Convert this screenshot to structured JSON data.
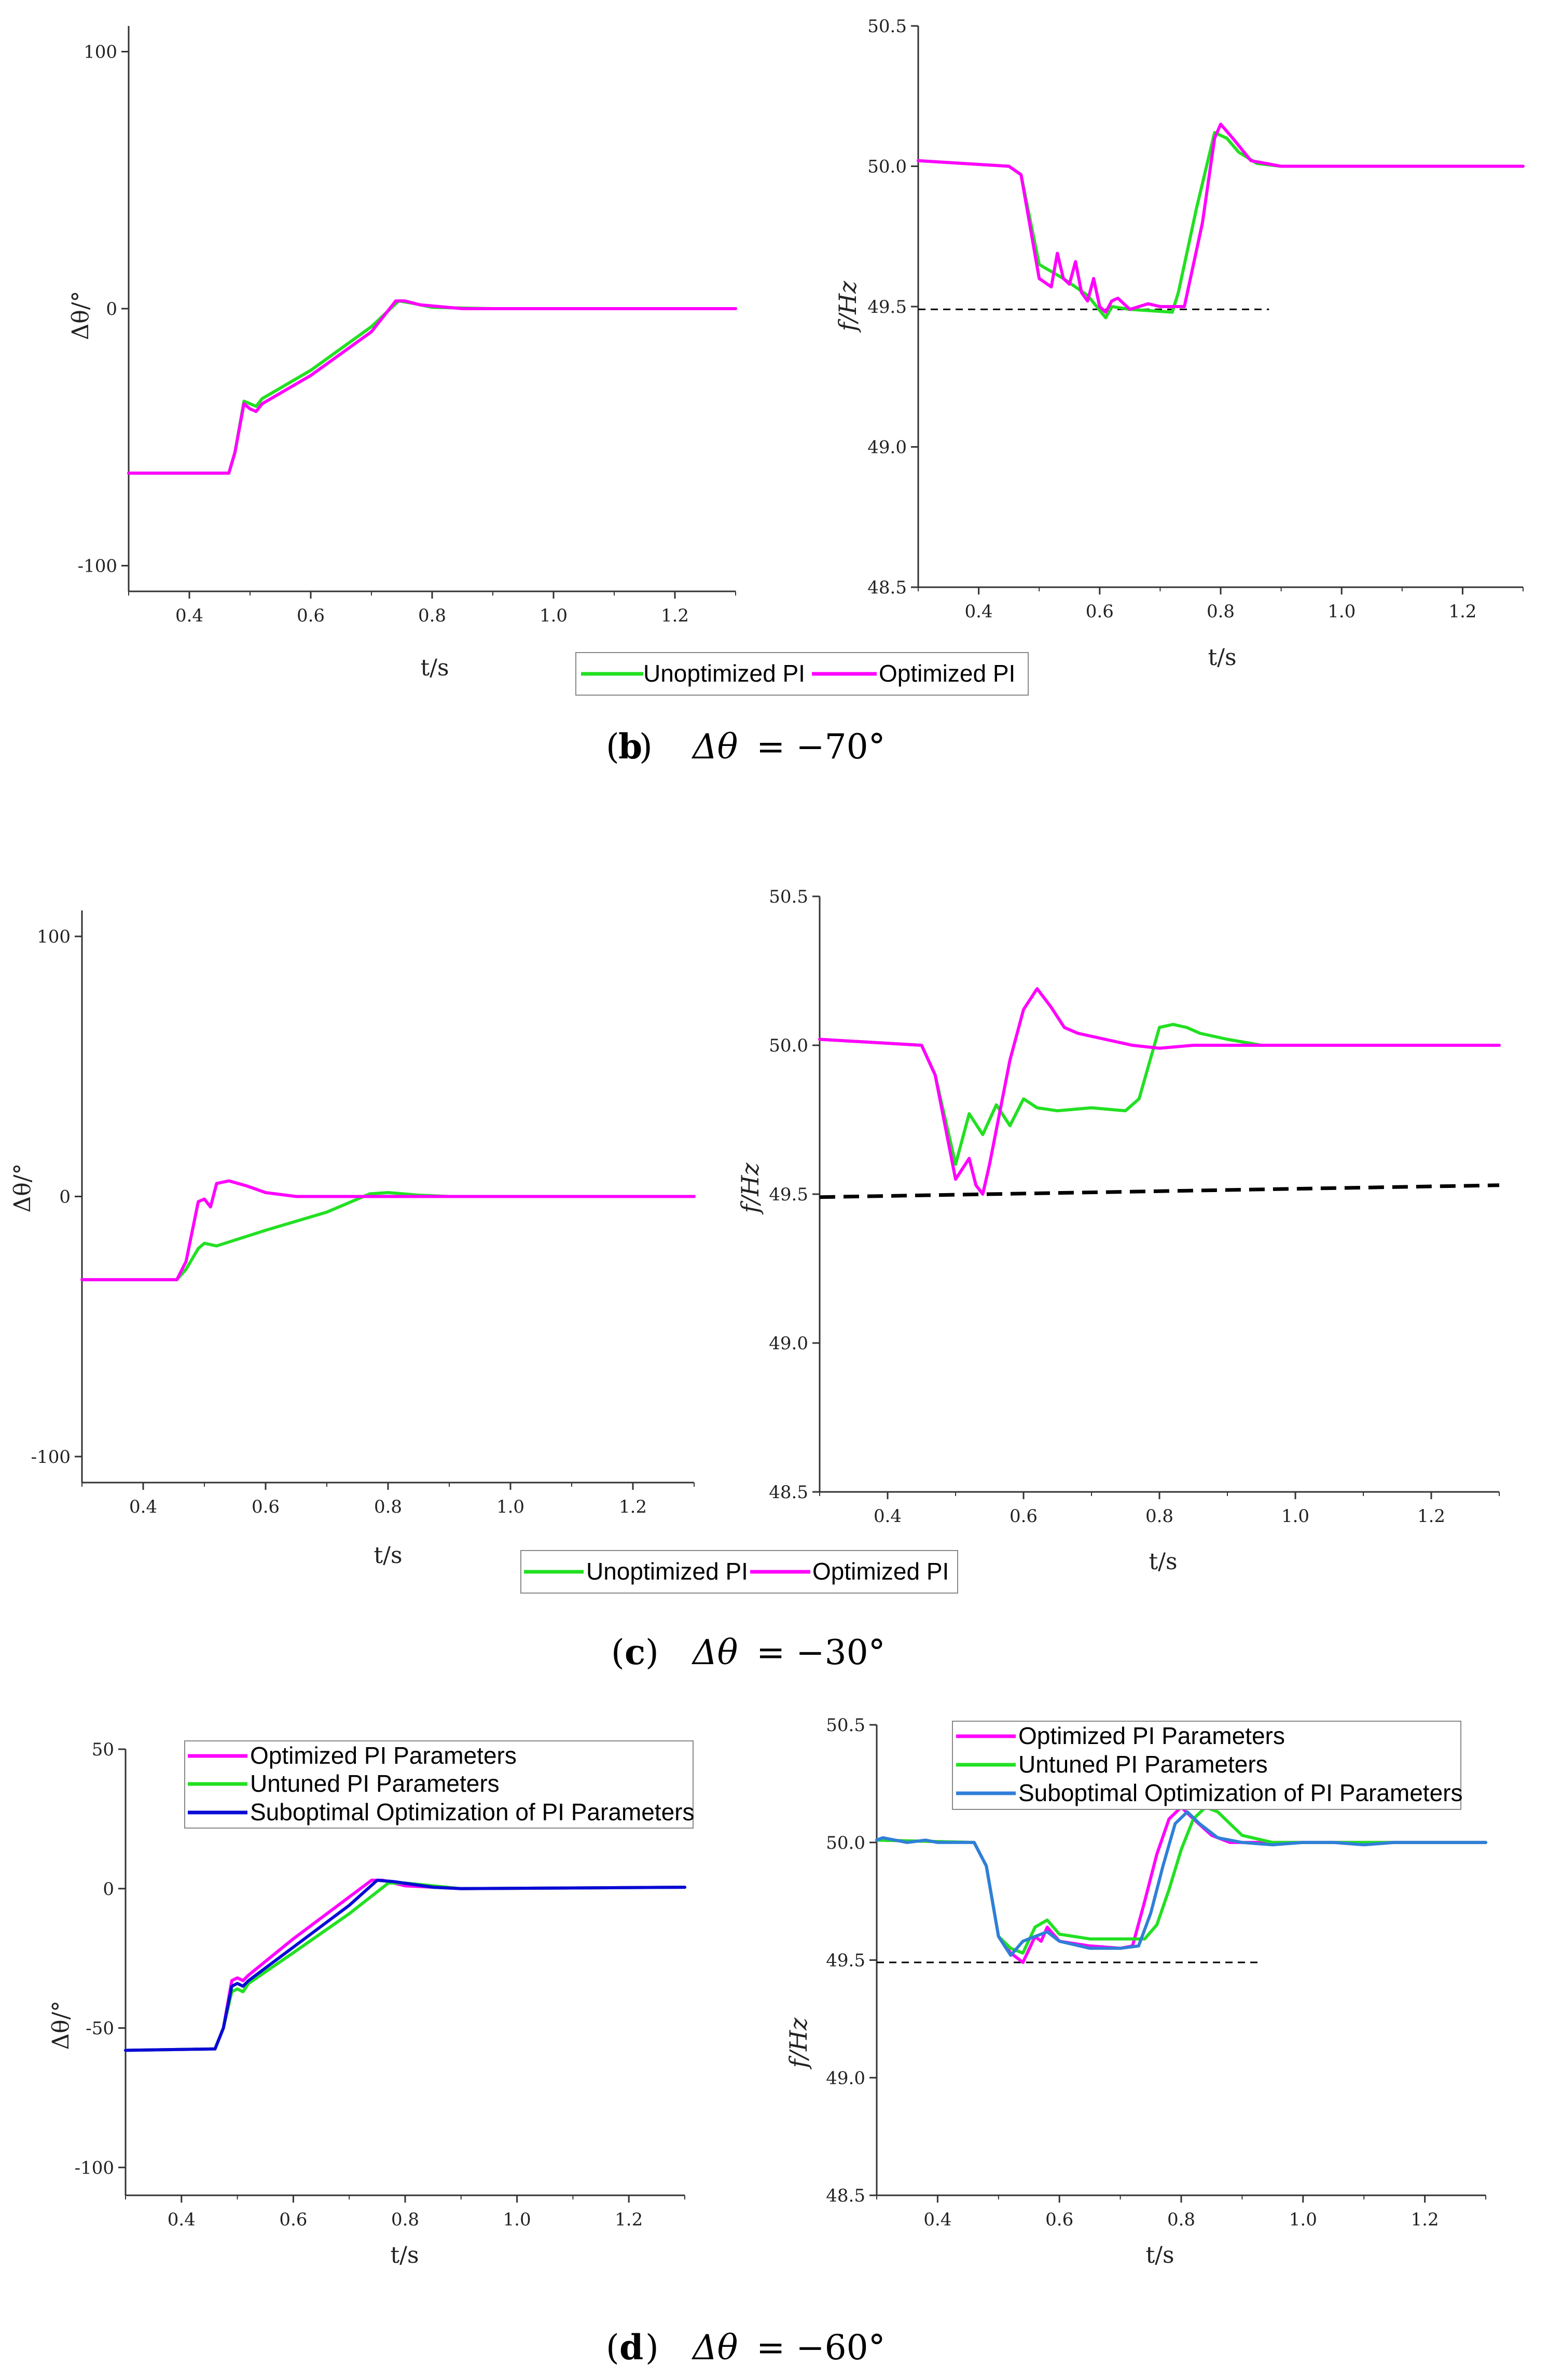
{
  "colors": {
    "optimized": "#ff00ff",
    "unoptimized": "#22e022",
    "suboptimal_left": "#0a0ad6",
    "suboptimal_right": "#2f7fd8",
    "reference": "#000000"
  },
  "captions": {
    "b": {
      "label": "b",
      "symbol": "Δθ",
      "value": "= −70°"
    },
    "c": {
      "label": "c",
      "symbol": "Δθ",
      "value": "= −30°"
    },
    "d": {
      "label": "d",
      "symbol": "Δθ",
      "value": "= −60°"
    }
  },
  "legends": {
    "bc": {
      "series_unopt": "Unoptimized PI",
      "series_opt": "Optimized PI"
    },
    "d": {
      "series_opt": "Optimized PI Parameters",
      "series_untuned": "Untuned PI Parameters",
      "series_subopt": "Suboptimal Optimization of PI Parameters"
    }
  },
  "chart_data": [
    {
      "id": "b-left",
      "type": "line",
      "xlabel": "t/s",
      "ylabel": "Δθ/°",
      "xlim": [
        0.3,
        1.3
      ],
      "ylim": [
        -110,
        110
      ],
      "xticks": [
        "0.4",
        "0.6",
        "0.8",
        "1.0",
        "1.2"
      ],
      "yticks": [
        "-100",
        "0",
        "100"
      ],
      "series": [
        {
          "name": "Unoptimized PI",
          "x": [
            0.3,
            0.465,
            0.475,
            0.49,
            0.5,
            0.51,
            0.52,
            0.6,
            0.7,
            0.745,
            0.77,
            0.8,
            0.9,
            1.3
          ],
          "y": [
            -64,
            -64,
            -56,
            -36,
            -37,
            -38,
            -35,
            -24,
            -7,
            3,
            2,
            0.5,
            0,
            0
          ]
        },
        {
          "name": "Optimized PI",
          "x": [
            0.3,
            0.465,
            0.475,
            0.49,
            0.5,
            0.51,
            0.52,
            0.6,
            0.7,
            0.74,
            0.755,
            0.78,
            0.85,
            1.3
          ],
          "y": [
            -64,
            -64,
            -56,
            -37,
            -39,
            -40,
            -37,
            -26,
            -9,
            3,
            3,
            1.5,
            0,
            0
          ]
        }
      ]
    },
    {
      "id": "b-right",
      "type": "line",
      "xlabel": "t/s",
      "ylabel": "f/Hz",
      "xlim": [
        0.3,
        1.3
      ],
      "ylim": [
        48.5,
        50.5
      ],
      "xticks": [
        "0.4",
        "0.6",
        "0.8",
        "1.0",
        "1.2"
      ],
      "yticks": [
        "48.5",
        "49.0",
        "49.5",
        "50.0",
        "50.5"
      ],
      "reference": {
        "y": [
          49.49,
          49.49
        ],
        "x": [
          0.3,
          0.88
        ]
      },
      "series": [
        {
          "name": "Unoptimized PI",
          "x": [
            0.3,
            0.45,
            0.47,
            0.5,
            0.54,
            0.58,
            0.61,
            0.62,
            0.65,
            0.72,
            0.73,
            0.76,
            0.79,
            0.81,
            0.83,
            0.86,
            0.9,
            1.3
          ],
          "y": [
            50.02,
            50.0,
            49.97,
            49.65,
            49.6,
            49.54,
            49.46,
            49.5,
            49.49,
            49.48,
            49.55,
            49.85,
            50.12,
            50.1,
            50.05,
            50.01,
            50.0,
            50.0
          ]
        },
        {
          "name": "Optimized PI",
          "x": [
            0.3,
            0.45,
            0.47,
            0.5,
            0.52,
            0.53,
            0.54,
            0.55,
            0.56,
            0.57,
            0.58,
            0.59,
            0.6,
            0.61,
            0.62,
            0.63,
            0.65,
            0.68,
            0.7,
            0.72,
            0.74,
            0.77,
            0.79,
            0.8,
            0.82,
            0.85,
            0.9,
            0.95,
            1.0,
            1.05,
            1.1,
            1.3
          ],
          "y": [
            50.02,
            50.0,
            49.97,
            49.6,
            49.57,
            49.69,
            49.6,
            49.58,
            49.66,
            49.55,
            49.52,
            49.6,
            49.5,
            49.48,
            49.52,
            49.53,
            49.49,
            49.51,
            49.5,
            49.5,
            49.5,
            49.8,
            50.1,
            50.15,
            50.1,
            50.02,
            50.0,
            50.0,
            50.0,
            50.0,
            50.0,
            50.0
          ]
        }
      ]
    },
    {
      "id": "c-left",
      "type": "line",
      "xlabel": "t/s",
      "ylabel": "Δθ/°",
      "xlim": [
        0.3,
        1.3
      ],
      "ylim": [
        -110,
        110
      ],
      "xticks": [
        "0.4",
        "0.6",
        "0.8",
        "1.0",
        "1.2"
      ],
      "yticks": [
        "-100",
        "0",
        "100"
      ],
      "series": [
        {
          "name": "Unoptimized PI",
          "x": [
            0.3,
            0.455,
            0.47,
            0.49,
            0.5,
            0.52,
            0.6,
            0.7,
            0.77,
            0.8,
            0.85,
            0.9,
            1.3
          ],
          "y": [
            -32,
            -32,
            -28,
            -20,
            -18,
            -19,
            -13,
            -6,
            1,
            1.5,
            0.5,
            0,
            0
          ]
        },
        {
          "name": "Optimized PI",
          "x": [
            0.3,
            0.455,
            0.47,
            0.49,
            0.5,
            0.51,
            0.52,
            0.54,
            0.57,
            0.6,
            0.65,
            0.7,
            0.8,
            1.3
          ],
          "y": [
            -32,
            -32,
            -25,
            -2,
            -1,
            -4,
            5,
            6,
            4,
            1.5,
            0,
            0,
            0,
            0
          ]
        }
      ]
    },
    {
      "id": "c-right",
      "type": "line",
      "xlabel": "t/s",
      "ylabel": "f/Hz",
      "xlim": [
        0.3,
        1.3
      ],
      "ylim": [
        48.5,
        50.5
      ],
      "xticks": [
        "0.4",
        "0.6",
        "0.8",
        "1.0",
        "1.2"
      ],
      "yticks": [
        "48.5",
        "49.0",
        "49.5",
        "50.0",
        "50.5"
      ],
      "reference": {
        "y": [
          49.49,
          49.53
        ],
        "x": [
          0.3,
          1.3
        ]
      },
      "series": [
        {
          "name": "Unoptimized PI",
          "x": [
            0.3,
            0.45,
            0.47,
            0.5,
            0.52,
            0.54,
            0.56,
            0.58,
            0.6,
            0.62,
            0.65,
            0.7,
            0.75,
            0.77,
            0.79,
            0.8,
            0.82,
            0.84,
            0.86,
            0.9,
            0.95,
            1.3
          ],
          "y": [
            50.02,
            50.0,
            49.9,
            49.6,
            49.77,
            49.7,
            49.8,
            49.73,
            49.82,
            49.79,
            49.78,
            49.79,
            49.78,
            49.82,
            49.98,
            50.06,
            50.07,
            50.06,
            50.04,
            50.02,
            50.0,
            50.0
          ]
        },
        {
          "name": "Optimized PI",
          "x": [
            0.3,
            0.45,
            0.47,
            0.5,
            0.52,
            0.53,
            0.54,
            0.55,
            0.58,
            0.6,
            0.62,
            0.64,
            0.66,
            0.68,
            0.72,
            0.76,
            0.8,
            0.85,
            0.9,
            0.95,
            1.0,
            1.05,
            1.3
          ],
          "y": [
            50.02,
            50.0,
            49.9,
            49.55,
            49.62,
            49.53,
            49.5,
            49.6,
            49.95,
            50.12,
            50.19,
            50.13,
            50.06,
            50.04,
            50.02,
            50.0,
            49.99,
            50.0,
            50.0,
            50.0,
            50.0,
            50.0,
            50.0
          ]
        }
      ]
    },
    {
      "id": "d-left",
      "type": "line",
      "xlabel": "t/s",
      "ylabel": "Δθ/°",
      "xlim": [
        0.3,
        1.3
      ],
      "ylim": [
        -110,
        50
      ],
      "xticks": [
        "0.4",
        "0.6",
        "0.8",
        "1.0",
        "1.2"
      ],
      "yticks": [
        "-100",
        "-50",
        "0",
        "50"
      ],
      "series": [
        {
          "name": "Optimized PI Parameters",
          "x": [
            0.3,
            0.46,
            0.475,
            0.49,
            0.5,
            0.51,
            0.52,
            0.6,
            0.7,
            0.74,
            0.76,
            0.8,
            0.9,
            1.3
          ],
          "y": [
            -58,
            -57.5,
            -50,
            -33,
            -32,
            -33,
            -31,
            -18,
            -3,
            3,
            3,
            1,
            0,
            0.5
          ]
        },
        {
          "name": "Untuned PI Parameters",
          "x": [
            0.3,
            0.46,
            0.475,
            0.49,
            0.5,
            0.51,
            0.52,
            0.6,
            0.7,
            0.77,
            0.8,
            0.85,
            0.9,
            1.3
          ],
          "y": [
            -58,
            -57.5,
            -50,
            -37,
            -36,
            -37,
            -34,
            -23,
            -9,
            2,
            2,
            1,
            0,
            0.5
          ]
        },
        {
          "name": "Suboptimal Optimization of PI Parameters",
          "x": [
            0.3,
            0.46,
            0.475,
            0.49,
            0.5,
            0.51,
            0.52,
            0.6,
            0.7,
            0.75,
            0.78,
            0.85,
            0.9,
            1.3
          ],
          "y": [
            -58,
            -57.5,
            -50,
            -35,
            -34,
            -35,
            -33,
            -21,
            -6,
            3,
            2.5,
            0.5,
            0,
            0.5
          ]
        }
      ]
    },
    {
      "id": "d-right",
      "type": "line",
      "xlabel": "t/s",
      "ylabel": "f/Hz",
      "xlim": [
        0.3,
        1.3
      ],
      "ylim": [
        48.5,
        50.5
      ],
      "xticks": [
        "0.4",
        "0.6",
        "0.8",
        "1.0",
        "1.2"
      ],
      "yticks": [
        "48.5",
        "49.0",
        "49.5",
        "50.0",
        "50.5"
      ],
      "reference": {
        "y": [
          49.49,
          49.49
        ],
        "x": [
          0.3,
          0.93
        ]
      },
      "series": [
        {
          "name": "Optimized PI Parameters",
          "x": [
            0.3,
            0.46,
            0.48,
            0.5,
            0.52,
            0.54,
            0.56,
            0.57,
            0.58,
            0.6,
            0.65,
            0.7,
            0.72,
            0.74,
            0.76,
            0.78,
            0.8,
            0.82,
            0.85,
            0.88,
            0.9,
            0.95,
            1.3
          ],
          "y": [
            50.01,
            50.0,
            49.9,
            49.6,
            49.53,
            49.49,
            49.6,
            49.58,
            49.64,
            49.58,
            49.56,
            49.55,
            49.56,
            49.75,
            49.95,
            50.1,
            50.15,
            50.1,
            50.03,
            50.0,
            50.0,
            50.0,
            50.0
          ]
        },
        {
          "name": "Untuned PI Parameters",
          "x": [
            0.3,
            0.46,
            0.48,
            0.5,
            0.52,
            0.54,
            0.56,
            0.58,
            0.6,
            0.65,
            0.7,
            0.74,
            0.76,
            0.78,
            0.8,
            0.82,
            0.84,
            0.86,
            0.88,
            0.9,
            0.95,
            1.3
          ],
          "y": [
            50.01,
            50.0,
            49.9,
            49.6,
            49.55,
            49.53,
            49.64,
            49.67,
            49.61,
            49.59,
            49.59,
            49.59,
            49.65,
            49.8,
            49.97,
            50.1,
            50.15,
            50.13,
            50.08,
            50.03,
            50.0,
            50.0
          ]
        },
        {
          "name": "Suboptimal Optimization of PI Parameters",
          "x": [
            0.3,
            0.31,
            0.33,
            0.35,
            0.38,
            0.4,
            0.43,
            0.46,
            0.48,
            0.5,
            0.52,
            0.54,
            0.56,
            0.58,
            0.6,
            0.65,
            0.7,
            0.73,
            0.75,
            0.77,
            0.79,
            0.81,
            0.83,
            0.86,
            0.9,
            0.95,
            1.0,
            1.05,
            1.1,
            1.15,
            1.2,
            1.25,
            1.3
          ],
          "y": [
            50.01,
            50.02,
            50.01,
            50.0,
            50.01,
            50.0,
            50.0,
            50.0,
            49.9,
            49.6,
            49.52,
            49.58,
            49.6,
            49.62,
            49.58,
            49.55,
            49.55,
            49.56,
            49.7,
            49.9,
            50.08,
            50.13,
            50.08,
            50.02,
            50.0,
            49.99,
            50.0,
            50.0,
            49.99,
            50.0,
            50.0,
            50.0,
            50.0
          ]
        }
      ]
    }
  ]
}
